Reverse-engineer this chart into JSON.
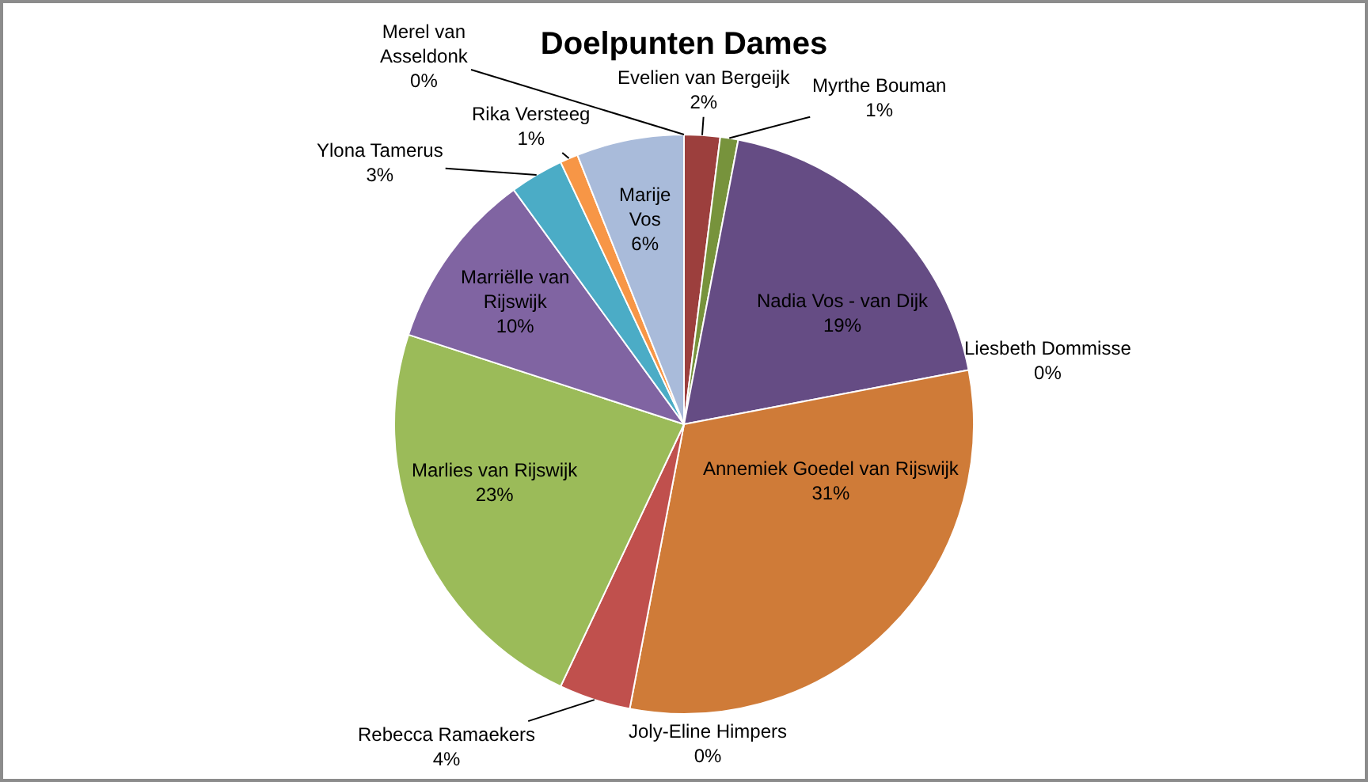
{
  "chart_data": {
    "type": "pie",
    "title": "Doelpunten Dames",
    "categories": [
      "Merel van Asseldonk",
      "Evelien van Bergeijk",
      "Myrthe Bouman",
      "Nadia Vos - van Dijk",
      "Liesbeth Dommisse",
      "Annemiek Goedel van Rijswijk",
      "Joly-Eline Himpers",
      "Rebecca Ramaekers",
      "Marlies van Rijswijk",
      "Marriëlle van Rijswijk",
      "Ylona Tamerus",
      "Rika Versteeg",
      "Marije Vos"
    ],
    "values": [
      0,
      2,
      1,
      19,
      0,
      31,
      0,
      4,
      23,
      10,
      3,
      1,
      6
    ],
    "value_labels": [
      "0%",
      "2%",
      "1%",
      "19%",
      "0%",
      "31%",
      "0%",
      "4%",
      "23%",
      "10%",
      "3%",
      "1%",
      "6%"
    ],
    "colors": [
      "#4f81bd",
      "#9c3f3d",
      "#77933c",
      "#654c84",
      "#2c4d75",
      "#cf7b38",
      "#276a7c",
      "#c0504d",
      "#9bbb59",
      "#8064a2",
      "#4bacc6",
      "#f79646",
      "#a9bbda"
    ],
    "legend": false
  }
}
